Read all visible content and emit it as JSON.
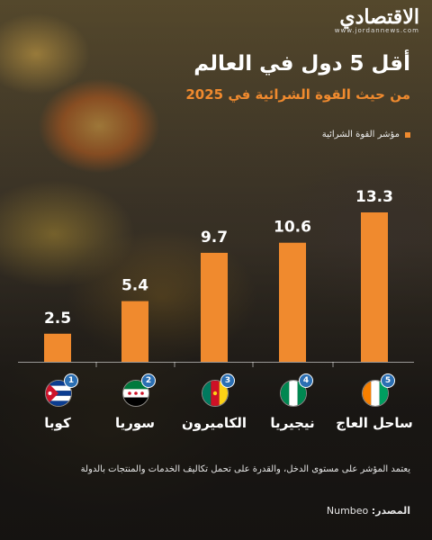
{
  "logo": {
    "name": "الاقتصادي",
    "site": "www.jordannews.com"
  },
  "header": {
    "title": "أقل 5 دول في العالم",
    "subtitle": "من حيث القوة الشرائية في 2025"
  },
  "chart_data": {
    "type": "bar",
    "categories": [
      "كوبا",
      "سوريا",
      "الكاميرون",
      "نيجيريا",
      "ساحل العاج"
    ],
    "ranks": [
      "1",
      "2",
      "3",
      "4",
      "5"
    ],
    "values": [
      2.5,
      5.4,
      9.7,
      10.6,
      13.3
    ],
    "value_labels": [
      "2.5",
      "5.4",
      "9.7",
      "10.6",
      "13.3"
    ],
    "legend": "مؤشر القوة الشرائية",
    "ylim": [
      0,
      13.3
    ],
    "bar_color": "#F08A2E",
    "grid": false
  },
  "flags": [
    "cuba-flag-icon",
    "syria-flag-icon",
    "cameroon-flag-icon",
    "nigeria-flag-icon",
    "ivory-coast-flag-icon"
  ],
  "footer": {
    "note": "يعتمد المؤشر على مستوى الدخل، والقدرة على تحمل تكاليف الخدمات والمنتجات بالدولة",
    "source_label": "المصدر:",
    "source_value": "Numbeo"
  },
  "colors": {
    "accent": "#F08A2E",
    "rank_badge": "#2B6FB3"
  }
}
